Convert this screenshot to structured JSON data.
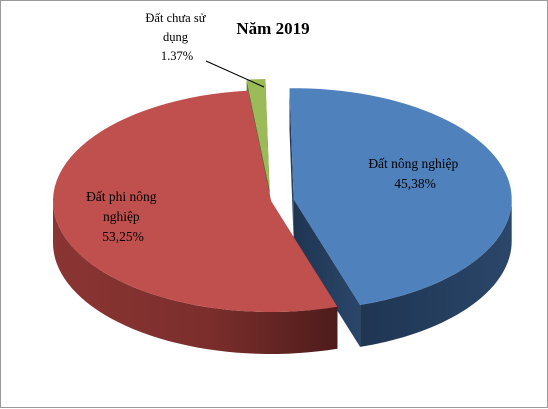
{
  "chart_data": {
    "type": "pie",
    "title": "Năm 2019",
    "slices": [
      {
        "name": "Đất nông nghiệp",
        "label_lines": [
          "Đất nông nghiệp",
          "45,38%"
        ],
        "value": 45.38,
        "color": "#4f81bd",
        "exploded": true
      },
      {
        "name": "Đất phi nông nghiệp",
        "label_lines": [
          "Đất phi nông",
          "nghiệp",
          "53,25%"
        ],
        "value": 53.25,
        "color": "#c0504d",
        "exploded": false
      },
      {
        "name": "Đất chưa sử dụng",
        "label_lines": [
          "Đất chưa sử",
          "dụng",
          "1.37%"
        ],
        "value": 1.37,
        "color": "#9bbb59",
        "exploded": true
      }
    ],
    "style": "3d-exploded",
    "legend": "none"
  }
}
